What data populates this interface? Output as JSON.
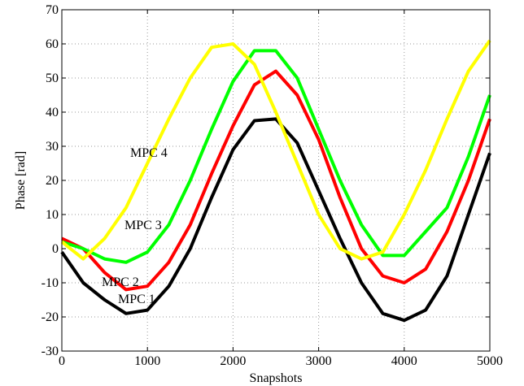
{
  "chart_data": {
    "type": "line",
    "xlabel": "Snapshots",
    "ylabel": "Phase [rad]",
    "x": [
      0,
      250,
      500,
      750,
      1000,
      1250,
      1500,
      1750,
      2000,
      2250,
      2500,
      2750,
      3000,
      3250,
      3500,
      3750,
      4000,
      4250,
      4500,
      4750,
      5000
    ],
    "series": [
      {
        "name": "MPC 1",
        "color": "#000000",
        "values": [
          -1,
          -10,
          -15,
          -19,
          -18,
          -11,
          0,
          15,
          29,
          37.5,
          38,
          31,
          17,
          3,
          -10,
          -19,
          -21,
          -18,
          -8,
          10,
          28
        ]
      },
      {
        "name": "MPC 2",
        "color": "#ff0000",
        "values": [
          3,
          0,
          -7,
          -12,
          -11,
          -4,
          7,
          22,
          36,
          48,
          52,
          45,
          32,
          15,
          0,
          -8,
          -10,
          -6,
          5,
          20,
          38
        ]
      },
      {
        "name": "MPC 3",
        "color": "#00ff00",
        "values": [
          2,
          0,
          -3,
          -4,
          -1,
          7,
          20,
          35,
          49,
          58,
          58,
          50,
          35,
          20,
          7,
          -2,
          -2,
          5,
          12,
          27,
          45
        ]
      },
      {
        "name": "MPC 4",
        "color": "#ffff00",
        "values": [
          2,
          -3,
          3,
          12,
          25,
          38,
          50,
          59,
          60,
          54,
          40,
          25,
          10,
          0,
          -3,
          -1,
          10,
          23,
          38,
          52,
          61
        ]
      }
    ],
    "xlim": [
      0,
      5000
    ],
    "xticks": [
      0,
      1000,
      2000,
      3000,
      4000,
      5000
    ],
    "ylim": [
      -30,
      70
    ],
    "yticks": [
      -30,
      -20,
      -10,
      0,
      10,
      20,
      30,
      40,
      50,
      60,
      70
    ],
    "grid": true
  }
}
